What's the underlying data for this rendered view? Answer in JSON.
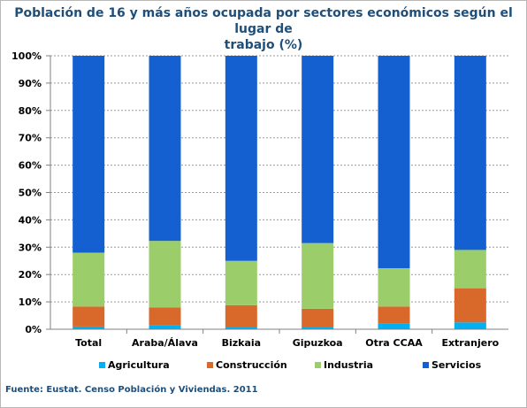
{
  "chart_data": {
    "type": "bar",
    "stacked": true,
    "normalized": true,
    "title": "Población de 16 y más años ocupada por sectores económicos según el lugar de\ntrabajo (%)",
    "categories": [
      "Total",
      "Araba/Álava",
      "Bizkaia",
      "Gipuzkoa",
      "Otra CCAA",
      "Extranjero"
    ],
    "series": [
      {
        "name": "Agricultura",
        "color": "#00b0f0",
        "values": [
          1.0,
          1.5,
          0.8,
          0.8,
          2.0,
          2.5
        ]
      },
      {
        "name": "Construcción",
        "color": "#d9692a",
        "values": [
          7.3,
          6.5,
          8.0,
          6.7,
          6.3,
          12.5
        ]
      },
      {
        "name": "Industria",
        "color": "#9bce6a",
        "values": [
          19.7,
          24.3,
          16.2,
          24.0,
          14.0,
          14.0
        ]
      },
      {
        "name": "Servicios",
        "color": "#1560d0",
        "values": [
          72.0,
          67.7,
          75.0,
          68.5,
          77.7,
          71.0
        ]
      }
    ],
    "y_ticks": [
      "0%",
      "10%",
      "20%",
      "30%",
      "40%",
      "50%",
      "60%",
      "70%",
      "80%",
      "90%",
      "100%"
    ],
    "ylim": [
      0,
      100
    ],
    "grid": true,
    "legend_position": "bottom"
  },
  "source": "Fuente: Eustat. Censo Población y Viviendas. 2011"
}
